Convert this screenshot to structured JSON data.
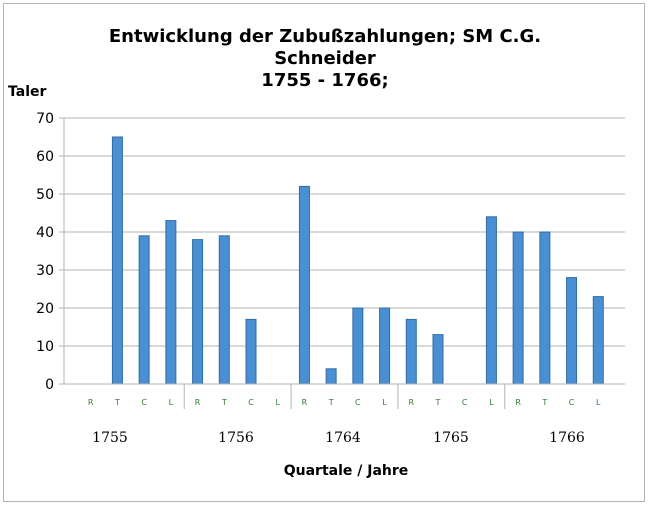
{
  "chart_data": {
    "type": "bar",
    "title_lines": [
      "Entwicklung der Zubußzahlungen; SM C.G.",
      "Schneider",
      "1755 - 1766;"
    ],
    "ylabel": "Taler",
    "xlabel": "Quartale / Jahre",
    "ylim": [
      0,
      70
    ],
    "yticks": [
      0,
      10,
      20,
      30,
      40,
      50,
      60,
      70
    ],
    "grid": true,
    "legend": "none",
    "bar_color": "#4a8fd1",
    "bar_edge_color": "#2f6ea8",
    "categories": [
      "R",
      "T",
      "C",
      "L",
      "R",
      "T",
      "C",
      "L",
      "R",
      "T",
      "C",
      "L",
      "R",
      "T",
      "C",
      "L",
      "R",
      "T",
      "C",
      "L"
    ],
    "values": [
      0,
      65,
      39,
      43,
      38,
      39,
      17,
      0,
      52,
      4,
      20,
      20,
      17,
      13,
      0,
      44,
      40,
      40,
      28,
      23
    ],
    "years": [
      "1755",
      "1756",
      "1764",
      "1765",
      "1766"
    ]
  }
}
